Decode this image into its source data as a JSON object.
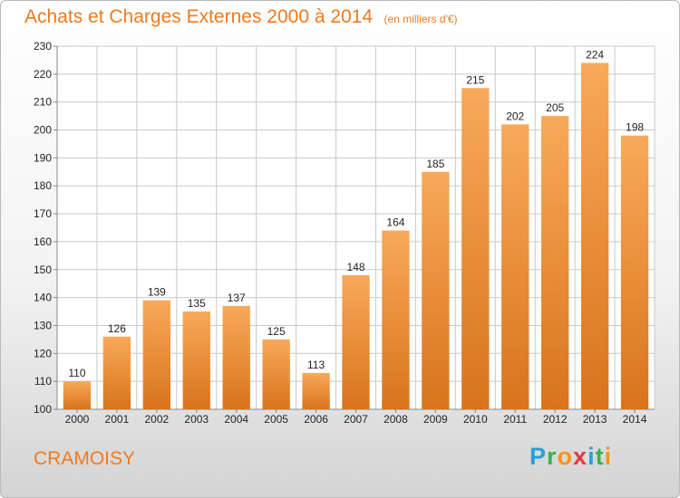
{
  "header": {
    "title": "Achats et Charges Externes 2000 à 2014",
    "subtitle": "(en milliers d'€)"
  },
  "footer": {
    "commune": "CRAMOISY",
    "brand": {
      "letters": [
        "P",
        "r",
        "o",
        "x",
        "i",
        "t",
        "i"
      ],
      "colors": [
        "#2a9fd6",
        "#3ab34a",
        "#f7931e",
        "#e03a3e",
        "#2a9fd6",
        "#3ab34a",
        "#f7931e"
      ]
    }
  },
  "colors": {
    "bar_light": "#f8a95a",
    "bar_dark": "#d8741c",
    "title": "#f07a1e",
    "grid": "#c8c8c8"
  },
  "chart_data": {
    "type": "bar",
    "title": "Achats et Charges Externes 2000 à 2014",
    "subtitle": "(en milliers d'€)",
    "categories": [
      "2000",
      "2001",
      "2002",
      "2003",
      "2004",
      "2005",
      "2006",
      "2007",
      "2008",
      "2009",
      "2010",
      "2011",
      "2012",
      "2013",
      "2014"
    ],
    "values": [
      110,
      126,
      139,
      135,
      137,
      125,
      113,
      148,
      164,
      185,
      215,
      202,
      205,
      224,
      198
    ],
    "ylim": [
      100,
      230
    ],
    "yticks": [
      100,
      110,
      120,
      130,
      140,
      150,
      160,
      170,
      180,
      190,
      200,
      210,
      220,
      230
    ],
    "grid": true,
    "data_labels": true
  }
}
